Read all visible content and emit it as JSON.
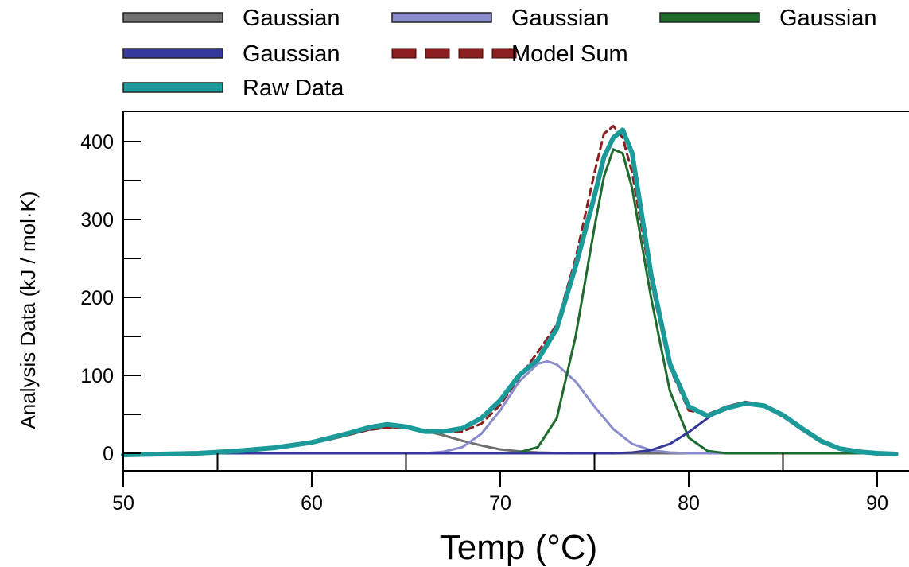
{
  "chart_data": {
    "type": "line",
    "title": "",
    "xlabel": "Temp (°C)",
    "ylabel": "Analysis Data (kJ / mol·K)",
    "xlim": [
      50,
      91
    ],
    "ylim": [
      -20,
      440
    ],
    "x_ticks": [
      50,
      60,
      70,
      80,
      90
    ],
    "y_ticks": [
      0,
      100,
      200,
      300,
      400
    ],
    "legend_position": "top",
    "series": [
      {
        "name": "Gaussian",
        "color": "#6f6f6f",
        "width": 3,
        "dash": "",
        "x": [
          50,
          52,
          54,
          56,
          58,
          60,
          61,
          62,
          63,
          64,
          65,
          66,
          67,
          68,
          69,
          70,
          71,
          72,
          73,
          74,
          76,
          80,
          91
        ],
        "y": [
          0,
          0,
          0.5,
          2,
          6,
          13,
          18,
          24,
          30,
          33,
          33,
          29,
          23,
          16,
          10,
          5,
          2.5,
          1,
          0.4,
          0,
          0,
          0,
          0
        ]
      },
      {
        "name": "Gaussian",
        "color": "#8b8ccc",
        "width": 3,
        "dash": "",
        "x": [
          50,
          60,
          66,
          67,
          68,
          69,
          70,
          71,
          72,
          72.5,
          73,
          74,
          75,
          76,
          77,
          78,
          79,
          80,
          91
        ],
        "y": [
          0,
          0,
          0,
          2,
          8,
          25,
          55,
          92,
          115,
          118,
          114,
          92,
          60,
          31,
          12,
          4,
          1,
          0,
          0
        ]
      },
      {
        "name": "Gaussian",
        "color": "#1f6b2e",
        "width": 3,
        "dash": "",
        "x": [
          50,
          70,
          71,
          72,
          73,
          74,
          75,
          75.5,
          76,
          76.5,
          77,
          78,
          79,
          80,
          81,
          82,
          91
        ],
        "y": [
          0,
          0,
          1,
          8,
          45,
          150,
          290,
          355,
          390,
          385,
          340,
          200,
          80,
          20,
          3,
          0,
          0
        ]
      },
      {
        "name": "Gaussian",
        "color": "#35389a",
        "width": 3,
        "dash": "",
        "x": [
          50,
          76,
          77,
          78,
          79,
          80,
          81,
          82,
          83,
          84,
          85,
          86,
          87,
          88,
          89,
          90,
          91
        ],
        "y": [
          0,
          0,
          1,
          4,
          12,
          27,
          45,
          60,
          65,
          60,
          47,
          30,
          15,
          6,
          2,
          0.5,
          0
        ]
      },
      {
        "name": "Model Sum",
        "color": "#8b1f1f",
        "width": 3,
        "dash": "9,6",
        "x": [
          50,
          54,
          56,
          58,
          60,
          62,
          63,
          64,
          65,
          66,
          67,
          68,
          69,
          70,
          71,
          72,
          73,
          74,
          75,
          75.5,
          76,
          76.5,
          77,
          78,
          79,
          80,
          81,
          82,
          83,
          84,
          85,
          86,
          87,
          88,
          89,
          90,
          91
        ],
        "y": [
          0,
          0.5,
          2,
          6,
          13,
          24,
          30,
          33,
          33,
          30,
          27,
          28,
          38,
          62,
          97,
          130,
          165,
          250,
          360,
          410,
          420,
          405,
          360,
          220,
          110,
          55,
          50,
          60,
          66,
          62,
          48,
          30,
          15,
          6,
          2,
          0.5,
          0
        ]
      },
      {
        "name": "Raw Data",
        "color": "#1c9a9a",
        "width": 6,
        "dash": "",
        "x": [
          50,
          52,
          54,
          56,
          58,
          60,
          62,
          63,
          64,
          65,
          66,
          67,
          68,
          69,
          70,
          71,
          72,
          73,
          74,
          75,
          75.5,
          76,
          76.5,
          77,
          78,
          79,
          80,
          81,
          82,
          83,
          84,
          85,
          86,
          87,
          88,
          89,
          90,
          91
        ],
        "y": [
          -2,
          -1,
          0,
          3,
          7,
          14,
          26,
          33,
          37,
          34,
          28,
          28,
          32,
          45,
          68,
          100,
          120,
          160,
          240,
          330,
          380,
          405,
          415,
          385,
          230,
          115,
          60,
          48,
          58,
          64,
          61,
          49,
          32,
          16,
          6,
          2,
          0,
          -1
        ]
      }
    ]
  }
}
